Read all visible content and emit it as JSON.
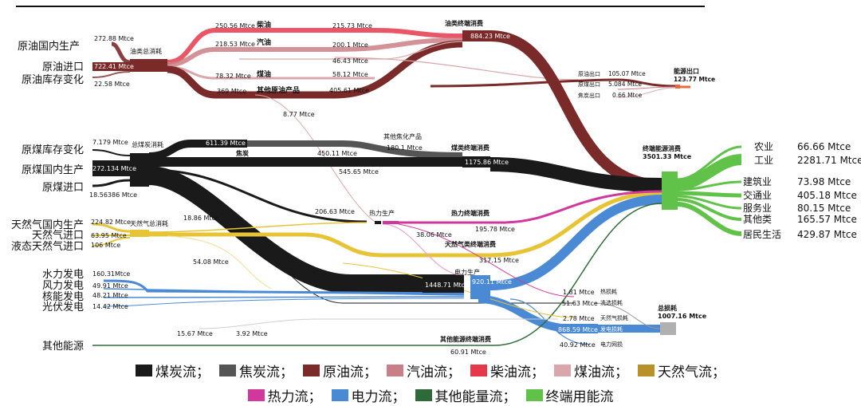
{
  "colors": {
    "coal": "#1a1a1a",
    "coke": "#555555",
    "crude": "#7b2a2a",
    "gasoline": "#c97f86",
    "diesel": "#e5384b",
    "kerosene": "#d9a7ab",
    "gas": "#e7c436",
    "heat": "#d0399b",
    "power": "#4a8ad4",
    "other": "#2f6b3a",
    "final": "#61c24a",
    "sheet_frame": "#111111"
  },
  "sources": {
    "crude_domestic": {
      "label": "原油国内生产",
      "value": "272.88 Mtce"
    },
    "crude_import": {
      "label": "原油进口",
      "value": "722.41 Mtce"
    },
    "crude_stock": {
      "label": "原油库存变化",
      "value": "22.58 Mtce"
    },
    "coal_stock": {
      "label": "原煤库存变化",
      "value": "7.179 Mtce"
    },
    "coal_domestic": {
      "label": "原煤国内生产",
      "value": "272.134 Mtce"
    },
    "coal_import": {
      "label": "原煤进口",
      "value": "18.56386 Mtce"
    },
    "gas_domestic": {
      "label": "天然气国内生产",
      "value": "224.82 Mtce"
    },
    "gas_import": {
      "label": "天然气进口",
      "value": "63.95 Mtce"
    },
    "lng_import": {
      "label": "液态天然气进口",
      "value": "106 Mtce"
    },
    "hydro": {
      "label": "水力发电",
      "value": "160.31Mtce"
    },
    "wind": {
      "label": "风力发电",
      "value": "49.91 Mtce"
    },
    "nuclear": {
      "label": "核能发电",
      "value": "48.21 Mtce"
    },
    "solar": {
      "label": "光伏发电",
      "value": "14.42 Mtce"
    },
    "other": {
      "label": "其他能源"
    }
  },
  "nodes": {
    "oil_total": "油类总消耗",
    "coal_total": "总煤炭消耗",
    "gas_total": "天然气总消耗",
    "oil_final": "油类终端消费",
    "oil_final_value": "884.23 Mtce",
    "coke_label": "焦炭",
    "coke_value": "611.39 Mtce",
    "coke_other": "其他焦化产品",
    "coke_other_value": "180.1 Mtce",
    "coal_final": "煤类终端消费",
    "coal_final_value": "1175.86 Mtce",
    "heat_prod": "热力生产",
    "heat_final": "热力终端消费",
    "heat_final_value": "195.78 Mtce",
    "gas_final": "天然气类终端消费",
    "gas_final_value": "317.15 Mtce",
    "power_prod": "电力生产",
    "power_in_value": "1448.71 Mtce",
    "power_out_value": "920.11 Mtce",
    "other_final": "其他能源终端消费",
    "other_final_value": "60.91 Mtce",
    "energy_export": "能源出口",
    "energy_export_value": "123.77 Mtce",
    "end_use": "终端能源消费",
    "end_use_value": "3501.33 Mtce",
    "total_loss": "总损耗",
    "total_loss_value": "1007.16 Mtce"
  },
  "oil_products": [
    {
      "name": "柴油",
      "in": "250.56 Mtce",
      "out": "215.73 Mtce"
    },
    {
      "name": "汽油",
      "in": "218.53 Mtce",
      "out": "200.1 Mtce"
    },
    {
      "name": "",
      "in": "",
      "out": "46.43 Mtce"
    },
    {
      "name": "煤油",
      "in": "78.32 Mtce",
      "out": "58.12 Mtce"
    },
    {
      "name": "其他原油产品",
      "in": "369 Mtce",
      "out": "405.61 Mtce"
    }
  ],
  "flow_labels": {
    "oil_to_heat": "8.77 Mtce",
    "coke_mid": "450.11 Mtce",
    "coal_direct": "545.65 Mtce",
    "coal_to_heat": "206.63 Mtce",
    "gas_to_heat": "18.86 Mtce",
    "heat_to_power": "38.06 Mtce",
    "gas_to_power": "54.08 Mtce",
    "other_a": "15.67 Mtce",
    "other_b": "3.92 Mtce"
  },
  "exports": [
    {
      "label": "原油出口",
      "value": "105.07 Mtce"
    },
    {
      "label": "原煤出口",
      "value": "5.084 Mtce"
    },
    {
      "label": "焦炭出口",
      "value": "0.66 Mtce"
    }
  ],
  "losses": [
    {
      "value": "1.81 Mtce",
      "label": "热损耗"
    },
    {
      "value": "51.63 Mtce",
      "label": "洗选损耗"
    },
    {
      "value": "2.78 Mtce",
      "label": "天然气损耗"
    },
    {
      "value": "868.59 Mtce",
      "label": "发电损耗"
    },
    {
      "value": "40.92 Mtce",
      "label": "电力网损"
    }
  ],
  "sectors": [
    {
      "name": "农业",
      "value": "66.66 Mtce"
    },
    {
      "name": "工业",
      "value": "2281.71 Mtce"
    },
    {
      "name": "建筑业",
      "value": "73.98 Mtce"
    },
    {
      "name": "交通业",
      "value": "405.18 Mtce"
    },
    {
      "name": "服务业",
      "value": "80.15 Mtce"
    },
    {
      "name": "其他类",
      "value": "165.57 Mtce"
    },
    {
      "name": "居民生活",
      "value": "429.87 Mtce"
    }
  ],
  "legend": {
    "row1": [
      {
        "label": "煤炭流；",
        "color": "#1a1a1a"
      },
      {
        "label": "焦炭流；",
        "color": "#555555"
      },
      {
        "label": "原油流；",
        "color": "#7b2a2a"
      },
      {
        "label": "汽油流；",
        "color": "#c97f86"
      },
      {
        "label": "柴油流；",
        "color": "#e5384b"
      },
      {
        "label": "煤油流；",
        "color": "#d9a7ab"
      },
      {
        "label": "天然气流；",
        "color": "#b8912a"
      }
    ],
    "row2": [
      {
        "label": "热力流；",
        "color": "#d0399b"
      },
      {
        "label": "电力流；",
        "color": "#4a8ad4"
      },
      {
        "label": "其他能量流；",
        "color": "#2f6b3a"
      },
      {
        "label": "终端用能流",
        "color": "#61c24a"
      }
    ]
  }
}
